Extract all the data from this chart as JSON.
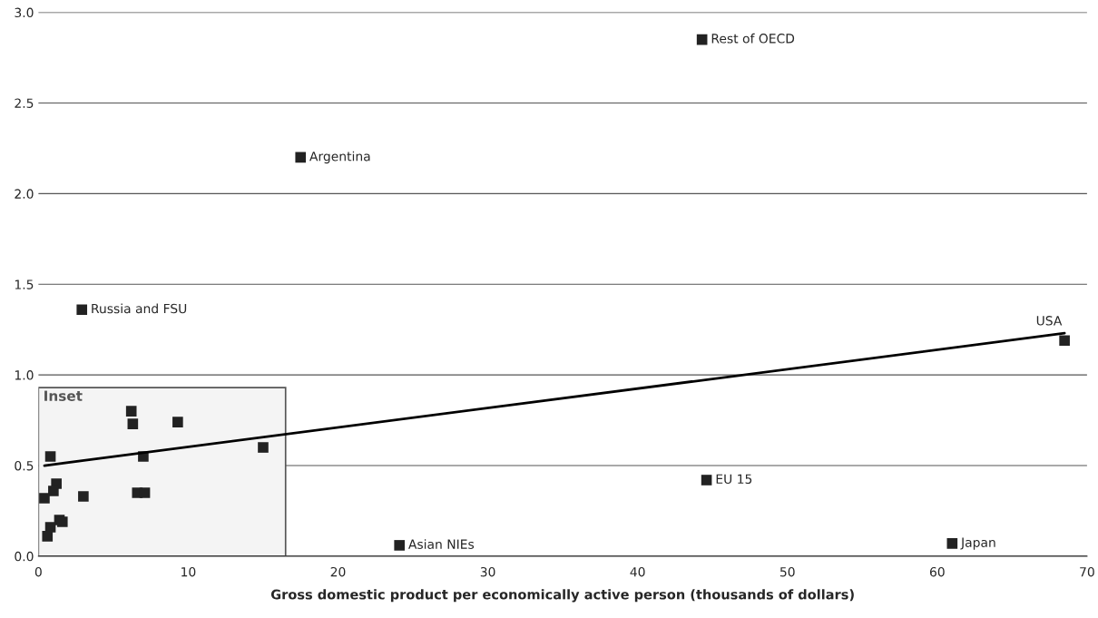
{
  "chart_data": {
    "type": "scatter",
    "xlabel": "Gross domestic product per economically active person (thousands of dollars)",
    "xlim": [
      0,
      70
    ],
    "ylim": [
      0,
      3.0
    ],
    "xticks": [
      0,
      10,
      20,
      30,
      40,
      50,
      60,
      70
    ],
    "yticks": [
      {
        "value": 0,
        "label": "0.0"
      },
      {
        "value": 0.5,
        "label": "0.5"
      },
      {
        "value": 1.0,
        "label": "1.0"
      },
      {
        "value": 1.5,
        "label": "1.5"
      },
      {
        "value": 2.0,
        "label": "2.0"
      },
      {
        "value": 2.5,
        "label": "2.5"
      },
      {
        "value": 3.0,
        "label": "3.0"
      }
    ],
    "grid": "y",
    "marker": "square",
    "bands": [
      {
        "axis": "x",
        "from": 0,
        "to": 16.5,
        "label": "Inset",
        "color": "#f4f4f4"
      }
    ],
    "series": [
      {
        "name": "Rest of OECD",
        "color": "#222222",
        "x": [
          44.3
        ],
        "values": [
          2.85
        ]
      },
      {
        "name": "Argentina",
        "color": "#222222",
        "x": [
          17.5
        ],
        "values": [
          2.2
        ]
      },
      {
        "name": "Russia and FSU",
        "color": "#222222",
        "x": [
          2.9
        ],
        "values": [
          1.36
        ]
      },
      {
        "name": "USA",
        "color": "#222222",
        "x": [
          68.5
        ],
        "values": [
          1.19
        ]
      },
      {
        "name": "EU 15",
        "color": "#222222",
        "x": [
          44.6
        ],
        "values": [
          0.42
        ]
      },
      {
        "name": "Asian NIEs",
        "color": "#222222",
        "x": [
          24.1
        ],
        "values": [
          0.06
        ]
      },
      {
        "name": "Japan",
        "color": "#222222",
        "x": [
          61.0
        ],
        "values": [
          0.07
        ]
      },
      {
        "color": "#222222",
        "x": [
          6.2,
          6.3,
          9.3,
          15.0,
          0.8,
          7.0,
          1.2,
          1.0,
          0.4,
          3.0,
          6.6,
          7.1,
          1.4,
          1.6,
          0.8,
          0.6
        ],
        "values": [
          0.8,
          0.73,
          0.74,
          0.6,
          0.55,
          0.55,
          0.4,
          0.36,
          0.32,
          0.33,
          0.35,
          0.35,
          0.2,
          0.19,
          0.16,
          0.11
        ]
      },
      {
        "type": "line",
        "color": "#000000",
        "marker": "none",
        "x": [
          0.4,
          68.5
        ],
        "values": [
          0.5,
          1.23
        ]
      }
    ]
  }
}
